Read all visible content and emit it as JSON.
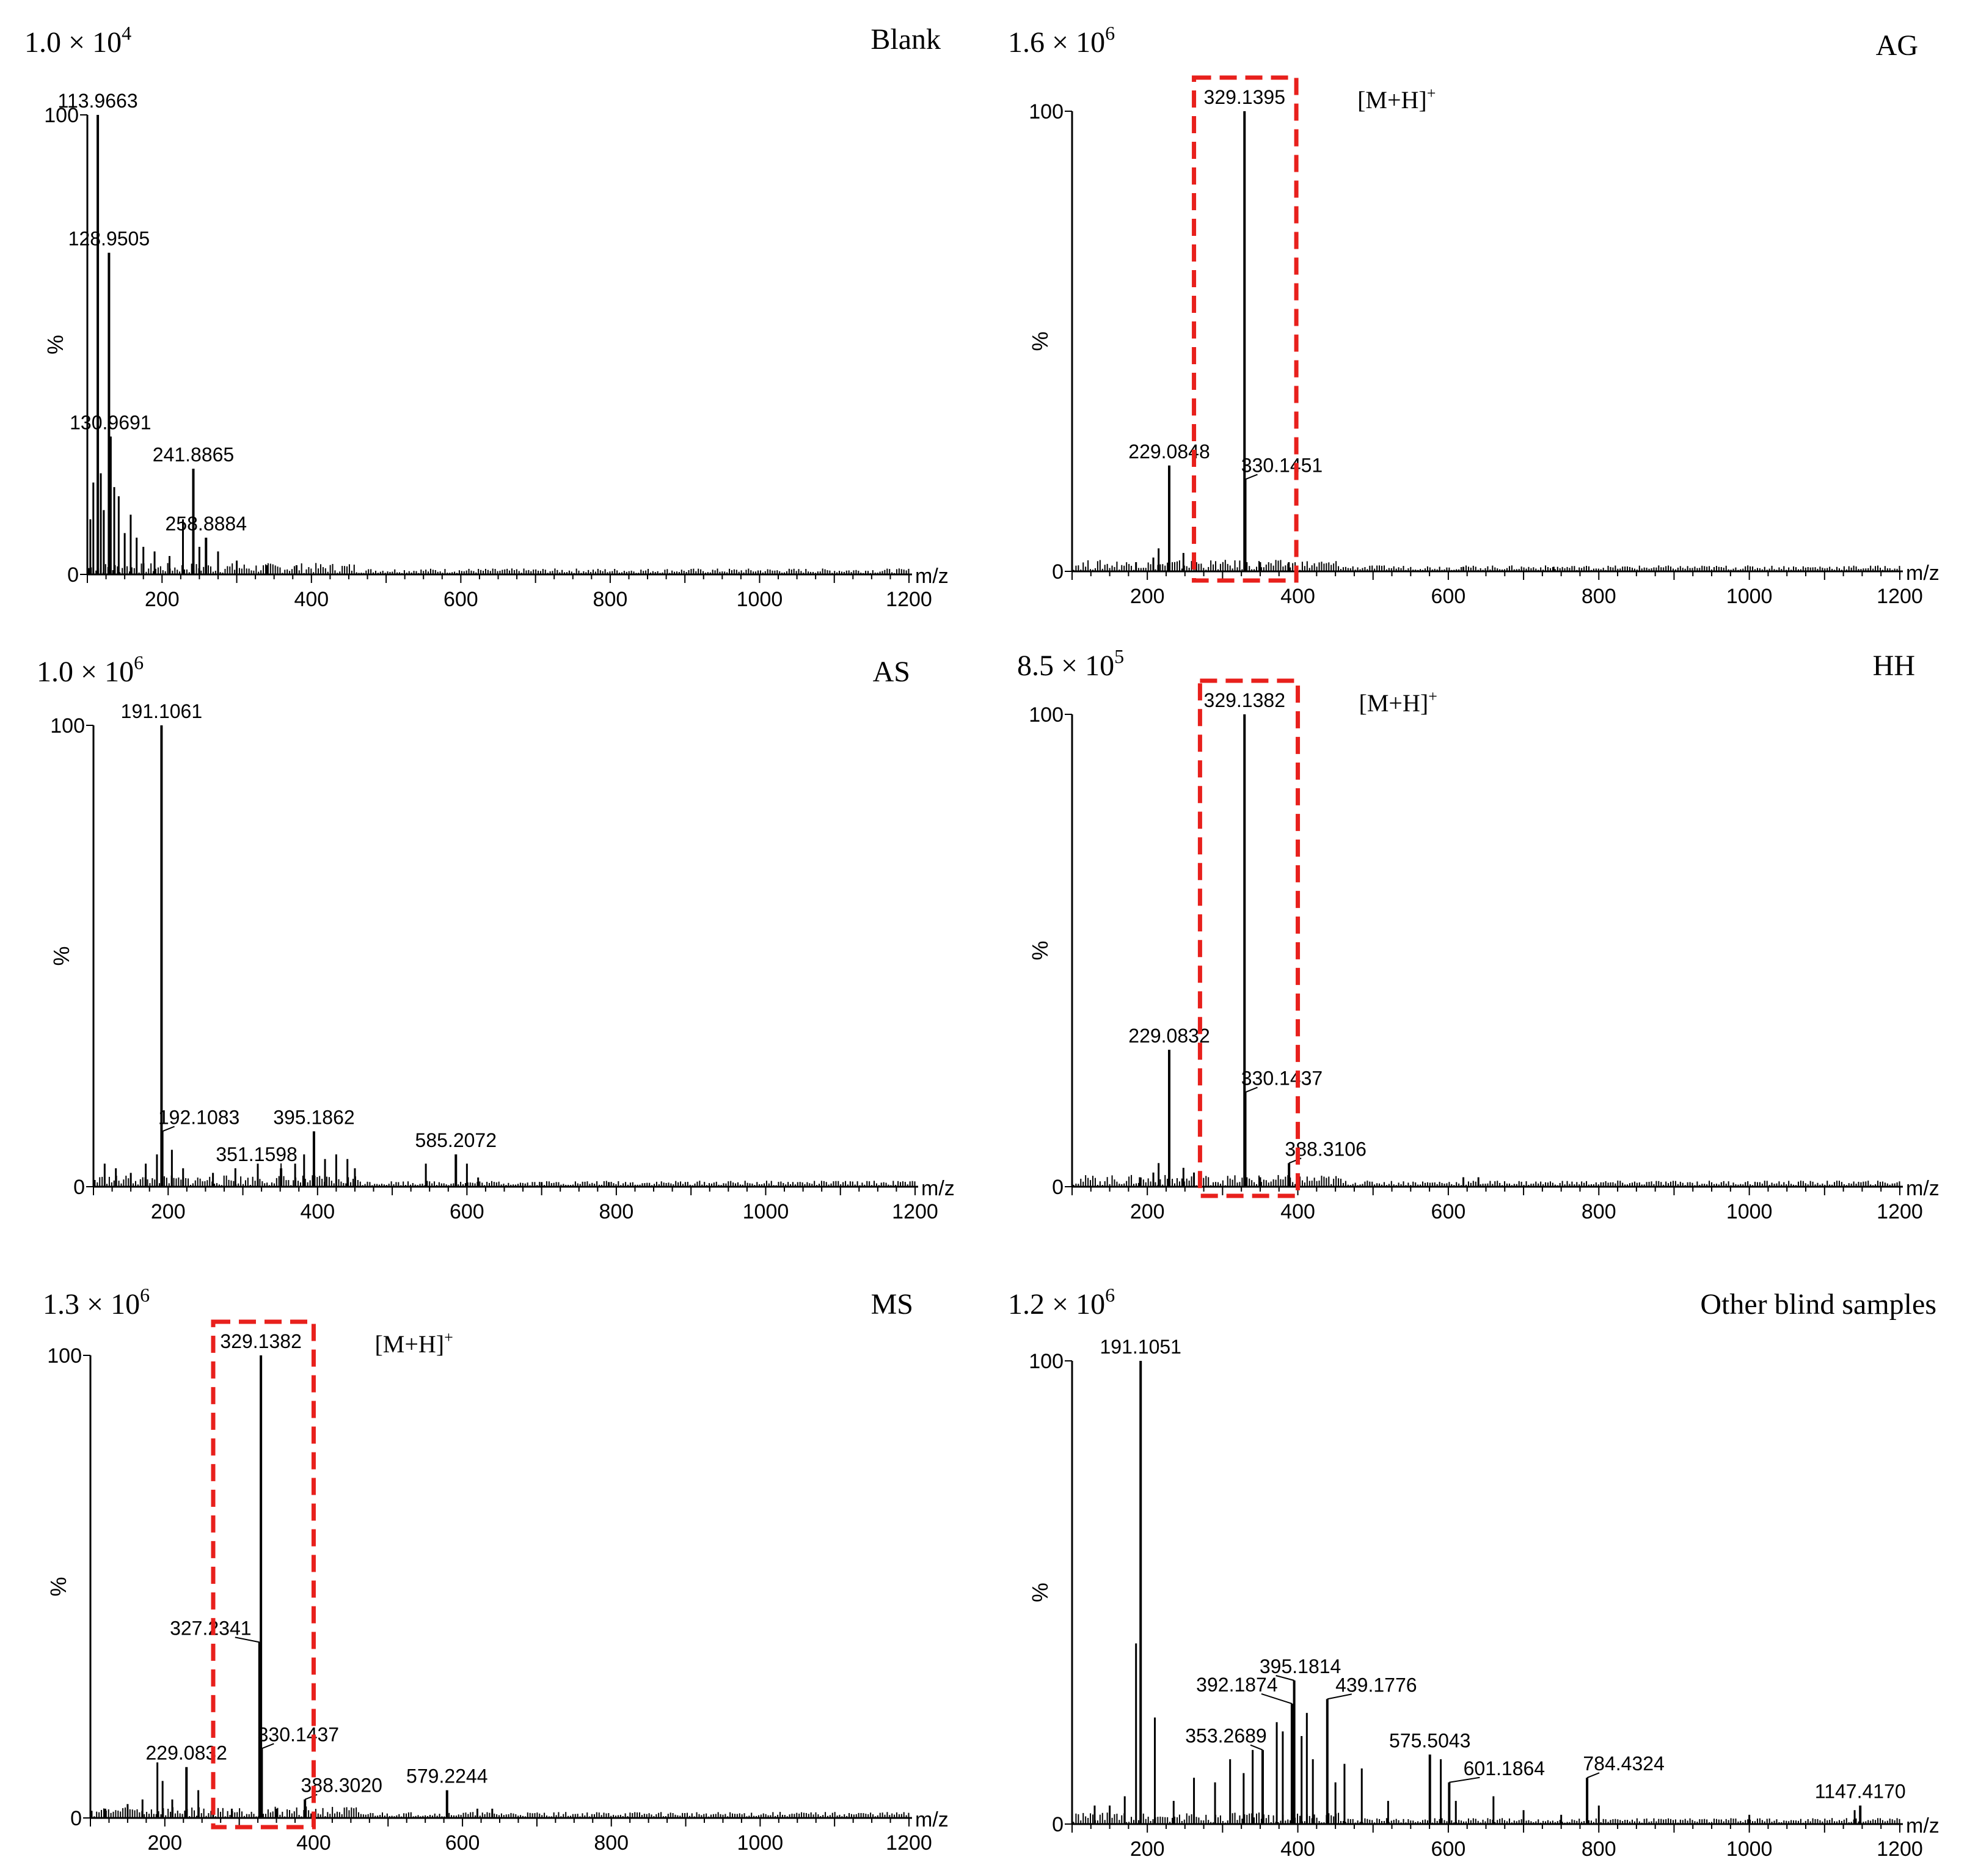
{
  "chart_data": [
    {
      "type": "bar",
      "sample": "Blank",
      "scale": {
        "mantissa": "1.0",
        "exponent": "4"
      },
      "xlabel": "m/z",
      "ylabel": "%",
      "xlim": [
        100,
        1200
      ],
      "ylim": [
        0,
        100
      ],
      "xticks": [
        200,
        400,
        600,
        800,
        1000,
        1200
      ],
      "yticks": [
        0,
        100
      ],
      "peaks": [
        {
          "x": 113.9663,
          "y": 100,
          "label": "113.9663"
        },
        {
          "x": 128.9505,
          "y": 70,
          "label": "128.9505"
        },
        {
          "x": 130.9691,
          "y": 30,
          "label": "130.9691"
        },
        {
          "x": 241.8865,
          "y": 23,
          "label": "241.8865"
        },
        {
          "x": 258.8884,
          "y": 8,
          "label": "258.8884"
        },
        {
          "x": 104,
          "y": 12
        },
        {
          "x": 108,
          "y": 20
        },
        {
          "x": 118,
          "y": 22
        },
        {
          "x": 122,
          "y": 14
        },
        {
          "x": 136,
          "y": 19
        },
        {
          "x": 142,
          "y": 17
        },
        {
          "x": 150,
          "y": 9
        },
        {
          "x": 158,
          "y": 13
        },
        {
          "x": 166,
          "y": 8
        },
        {
          "x": 175,
          "y": 6
        },
        {
          "x": 190,
          "y": 5
        },
        {
          "x": 210,
          "y": 4
        },
        {
          "x": 228,
          "y": 12
        },
        {
          "x": 250,
          "y": 6
        },
        {
          "x": 275,
          "y": 5
        },
        {
          "x": 300,
          "y": 3
        },
        {
          "x": 340,
          "y": 2
        },
        {
          "x": 380,
          "y": 2
        }
      ],
      "box": null
    },
    {
      "type": "bar",
      "sample": "AG",
      "scale": {
        "mantissa": "1.6",
        "exponent": "6"
      },
      "xlabel": "m/z",
      "ylabel": "%",
      "xlim": [
        100,
        1200
      ],
      "ylim": [
        0,
        100
      ],
      "xticks": [
        200,
        400,
        600,
        800,
        1000,
        1200
      ],
      "yticks": [
        0,
        100
      ],
      "ion": {
        "text": "[M+H]",
        "sup": "+"
      },
      "peaks": [
        {
          "x": 329.1395,
          "y": 100,
          "label": "329.1395"
        },
        {
          "x": 229.0848,
          "y": 23,
          "label": "229.0848"
        },
        {
          "x": 330.1451,
          "y": 20,
          "label": "330.1451"
        },
        {
          "x": 185,
          "y": 2
        },
        {
          "x": 208,
          "y": 3
        },
        {
          "x": 215,
          "y": 5
        },
        {
          "x": 248,
          "y": 4
        },
        {
          "x": 265,
          "y": 2
        },
        {
          "x": 350,
          "y": 2
        },
        {
          "x": 388,
          "y": 2
        },
        {
          "x": 620,
          "y": 1
        },
        {
          "x": 740,
          "y": 1
        }
      ],
      "box": [
        262,
        398
      ]
    },
    {
      "type": "bar",
      "sample": "AS",
      "scale": {
        "mantissa": "1.0",
        "exponent": "6"
      },
      "xlabel": "m/z",
      "ylabel": "%",
      "xlim": [
        100,
        1200
      ],
      "ylim": [
        0,
        100
      ],
      "xticks": [
        200,
        400,
        600,
        800,
        1000,
        1200
      ],
      "yticks": [
        0,
        100
      ],
      "peaks": [
        {
          "x": 191.1061,
          "y": 100,
          "label": "191.1061"
        },
        {
          "x": 192.1083,
          "y": 12,
          "label": "192.1083"
        },
        {
          "x": 395.1862,
          "y": 12,
          "label": "395.1862"
        },
        {
          "x": 351.1598,
          "y": 4,
          "label": "351.1598"
        },
        {
          "x": 585.2072,
          "y": 7,
          "label": "585.2072"
        },
        {
          "x": 115,
          "y": 5
        },
        {
          "x": 130,
          "y": 4
        },
        {
          "x": 150,
          "y": 3
        },
        {
          "x": 170,
          "y": 5
        },
        {
          "x": 185,
          "y": 7
        },
        {
          "x": 205,
          "y": 8
        },
        {
          "x": 220,
          "y": 4
        },
        {
          "x": 260,
          "y": 3
        },
        {
          "x": 290,
          "y": 4
        },
        {
          "x": 320,
          "y": 5
        },
        {
          "x": 370,
          "y": 5
        },
        {
          "x": 382,
          "y": 7
        },
        {
          "x": 410,
          "y": 6
        },
        {
          "x": 425,
          "y": 7
        },
        {
          "x": 440,
          "y": 6
        },
        {
          "x": 450,
          "y": 4
        },
        {
          "x": 545,
          "y": 5
        },
        {
          "x": 600,
          "y": 5
        },
        {
          "x": 615,
          "y": 2
        },
        {
          "x": 700,
          "y": 1
        },
        {
          "x": 790,
          "y": 1
        }
      ],
      "box": null
    },
    {
      "type": "bar",
      "sample": "HH",
      "scale": {
        "mantissa": "8.5",
        "exponent": "5"
      },
      "xlabel": "m/z",
      "ylabel": "%",
      "xlim": [
        100,
        1200
      ],
      "ylim": [
        0,
        100
      ],
      "xticks": [
        200,
        400,
        600,
        800,
        1000,
        1200
      ],
      "yticks": [
        0,
        100
      ],
      "ion": {
        "text": "[M+H]",
        "sup": "+"
      },
      "peaks": [
        {
          "x": 329.1382,
          "y": 100,
          "label": "329.1382"
        },
        {
          "x": 229.0832,
          "y": 29,
          "label": "229.0832"
        },
        {
          "x": 330.1437,
          "y": 20,
          "label": "330.1437"
        },
        {
          "x": 388.3106,
          "y": 5,
          "label": "388.3106"
        },
        {
          "x": 190,
          "y": 2
        },
        {
          "x": 208,
          "y": 3
        },
        {
          "x": 215,
          "y": 5
        },
        {
          "x": 248,
          "y": 4
        },
        {
          "x": 262,
          "y": 3
        },
        {
          "x": 350,
          "y": 2
        },
        {
          "x": 620,
          "y": 2
        },
        {
          "x": 640,
          "y": 2
        }
      ],
      "box": [
        270,
        400
      ]
    },
    {
      "type": "bar",
      "sample": "MS",
      "scale": {
        "mantissa": "1.3",
        "exponent": "6"
      },
      "xlabel": "m/z",
      "ylabel": "%",
      "xlim": [
        100,
        1200
      ],
      "ylim": [
        0,
        100
      ],
      "xticks": [
        200,
        400,
        600,
        800,
        1000,
        1200
      ],
      "yticks": [
        0,
        100
      ],
      "ion": {
        "text": "[M+H]",
        "sup": "+"
      },
      "peaks": [
        {
          "x": 329.1382,
          "y": 100,
          "label": "329.1382"
        },
        {
          "x": 327.2341,
          "y": 38,
          "label": "327.2341"
        },
        {
          "x": 330.1437,
          "y": 15,
          "label": "330.1437"
        },
        {
          "x": 229.0832,
          "y": 11,
          "label": "229.0832"
        },
        {
          "x": 388.302,
          "y": 4,
          "label": "388.3020"
        },
        {
          "x": 579.2244,
          "y": 6,
          "label": "579.2244"
        },
        {
          "x": 120,
          "y": 2
        },
        {
          "x": 150,
          "y": 3
        },
        {
          "x": 170,
          "y": 4
        },
        {
          "x": 190,
          "y": 12
        },
        {
          "x": 197,
          "y": 8
        },
        {
          "x": 210,
          "y": 4
        },
        {
          "x": 245,
          "y": 6
        },
        {
          "x": 265,
          "y": 3
        },
        {
          "x": 290,
          "y": 2
        },
        {
          "x": 350,
          "y": 2
        },
        {
          "x": 620,
          "y": 2
        },
        {
          "x": 640,
          "y": 2
        }
      ],
      "box": [
        265,
        400
      ]
    },
    {
      "type": "bar",
      "sample": "Other blind samples",
      "scale": {
        "mantissa": "1.2",
        "exponent": "6"
      },
      "xlabel": "m/z",
      "ylabel": "%",
      "xlim": [
        100,
        1200
      ],
      "ylim": [
        0,
        100
      ],
      "xticks": [
        200,
        400,
        600,
        800,
        1000,
        1200
      ],
      "yticks": [
        0,
        100
      ],
      "peaks": [
        {
          "x": 191.1051,
          "y": 100,
          "label": "191.1051"
        },
        {
          "x": 395.1814,
          "y": 31,
          "label": "395.1814"
        },
        {
          "x": 392.1874,
          "y": 26,
          "label": "392.1874"
        },
        {
          "x": 439.1776,
          "y": 27,
          "label": "439.1776"
        },
        {
          "x": 353.2689,
          "y": 16,
          "label": "353.2689"
        },
        {
          "x": 575.5043,
          "y": 15,
          "label": "575.5043"
        },
        {
          "x": 601.1864,
          "y": 9,
          "label": "601.1864"
        },
        {
          "x": 784.4324,
          "y": 10,
          "label": "784.4324"
        },
        {
          "x": 1147.417,
          "y": 4,
          "label": "1147.4170"
        },
        {
          "x": 185,
          "y": 39
        },
        {
          "x": 210,
          "y": 23
        },
        {
          "x": 130,
          "y": 4
        },
        {
          "x": 150,
          "y": 4
        },
        {
          "x": 170,
          "y": 6
        },
        {
          "x": 235,
          "y": 5
        },
        {
          "x": 262,
          "y": 10
        },
        {
          "x": 290,
          "y": 9
        },
        {
          "x": 310,
          "y": 14
        },
        {
          "x": 328,
          "y": 11
        },
        {
          "x": 340,
          "y": 16
        },
        {
          "x": 372,
          "y": 22
        },
        {
          "x": 380,
          "y": 20
        },
        {
          "x": 405,
          "y": 19
        },
        {
          "x": 412,
          "y": 24
        },
        {
          "x": 420,
          "y": 14
        },
        {
          "x": 450,
          "y": 9
        },
        {
          "x": 462,
          "y": 13
        },
        {
          "x": 485,
          "y": 12
        },
        {
          "x": 520,
          "y": 5
        },
        {
          "x": 590,
          "y": 14
        },
        {
          "x": 610,
          "y": 5
        },
        {
          "x": 660,
          "y": 6
        },
        {
          "x": 700,
          "y": 3
        },
        {
          "x": 750,
          "y": 2
        },
        {
          "x": 800,
          "y": 4
        },
        {
          "x": 1000,
          "y": 2
        },
        {
          "x": 1140,
          "y": 3
        }
      ],
      "box": null
    }
  ]
}
